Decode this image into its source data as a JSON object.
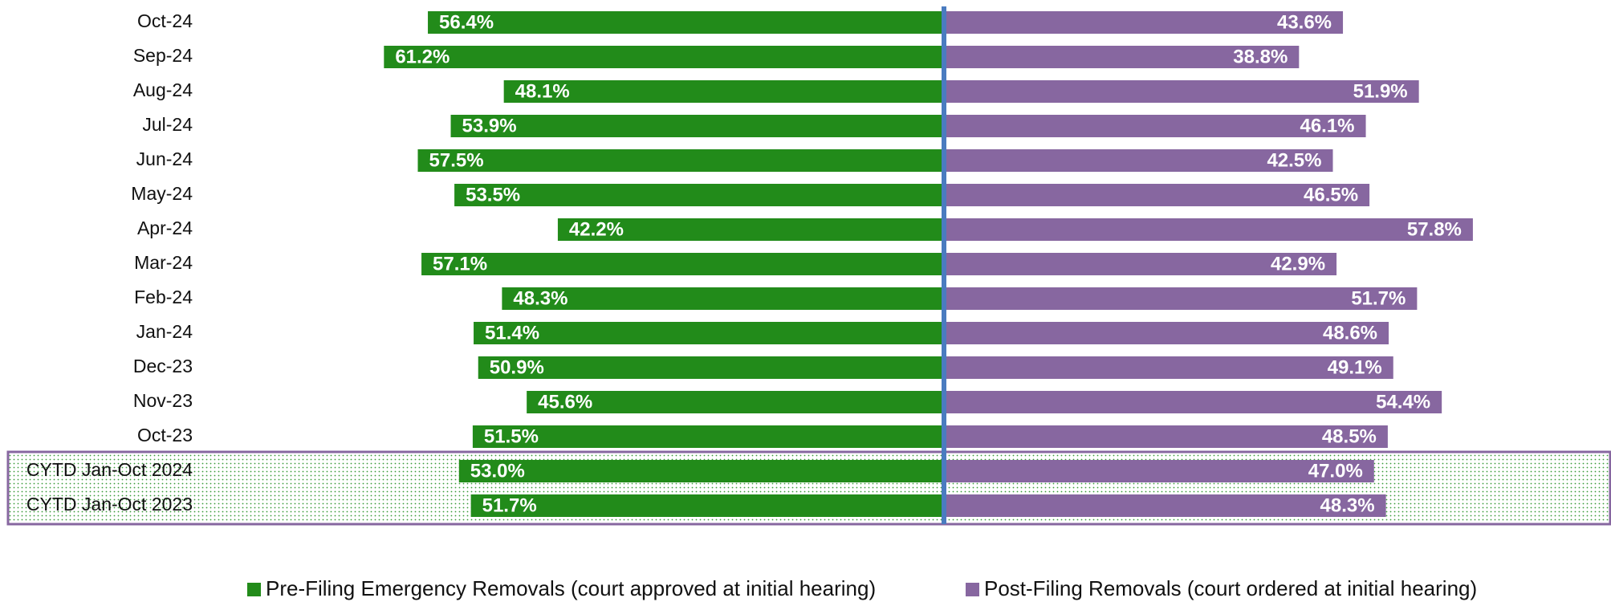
{
  "chart_data": {
    "type": "diverging_bar",
    "categories": [
      "Oct-24",
      "Sep-24",
      "Aug-24",
      "Jul-24",
      "Jun-24",
      "May-24",
      "Apr-24",
      "Mar-24",
      "Feb-24",
      "Jan-24",
      "Dec-23",
      "Nov-23",
      "Oct-23",
      "CYTD Jan-Oct 2024",
      "CYTD Jan-Oct 2023"
    ],
    "series": [
      {
        "name": "Pre-Filing Emergency Removals (court approved at initial hearing)",
        "color": "#228b1a",
        "values": [
          56.4,
          61.2,
          48.1,
          53.9,
          57.5,
          53.5,
          42.2,
          57.1,
          48.3,
          51.4,
          50.9,
          45.6,
          51.5,
          53.0,
          51.7
        ],
        "value_labels": [
          "56.4%",
          "61.2%",
          "48.1%",
          "53.9%",
          "57.5%",
          "53.5%",
          "42.2%",
          "57.1%",
          "48.3%",
          "51.4%",
          "50.9%",
          "45.6%",
          "51.5%",
          "53.0%",
          "51.7%"
        ]
      },
      {
        "name": "Post-Filing Removals (court ordered at initial hearing)",
        "color": "#8767a0",
        "values": [
          43.6,
          38.8,
          51.9,
          46.1,
          42.5,
          46.5,
          57.8,
          42.9,
          51.7,
          48.6,
          49.1,
          54.4,
          48.5,
          47.0,
          48.3
        ],
        "value_labels": [
          "43.6%",
          "38.8%",
          "51.9%",
          "46.1%",
          "42.5%",
          "46.5%",
          "57.8%",
          "42.9%",
          "51.7%",
          "48.6%",
          "49.1%",
          "54.4%",
          "48.5%",
          "47.0%",
          "48.3%"
        ]
      }
    ]
  }
}
